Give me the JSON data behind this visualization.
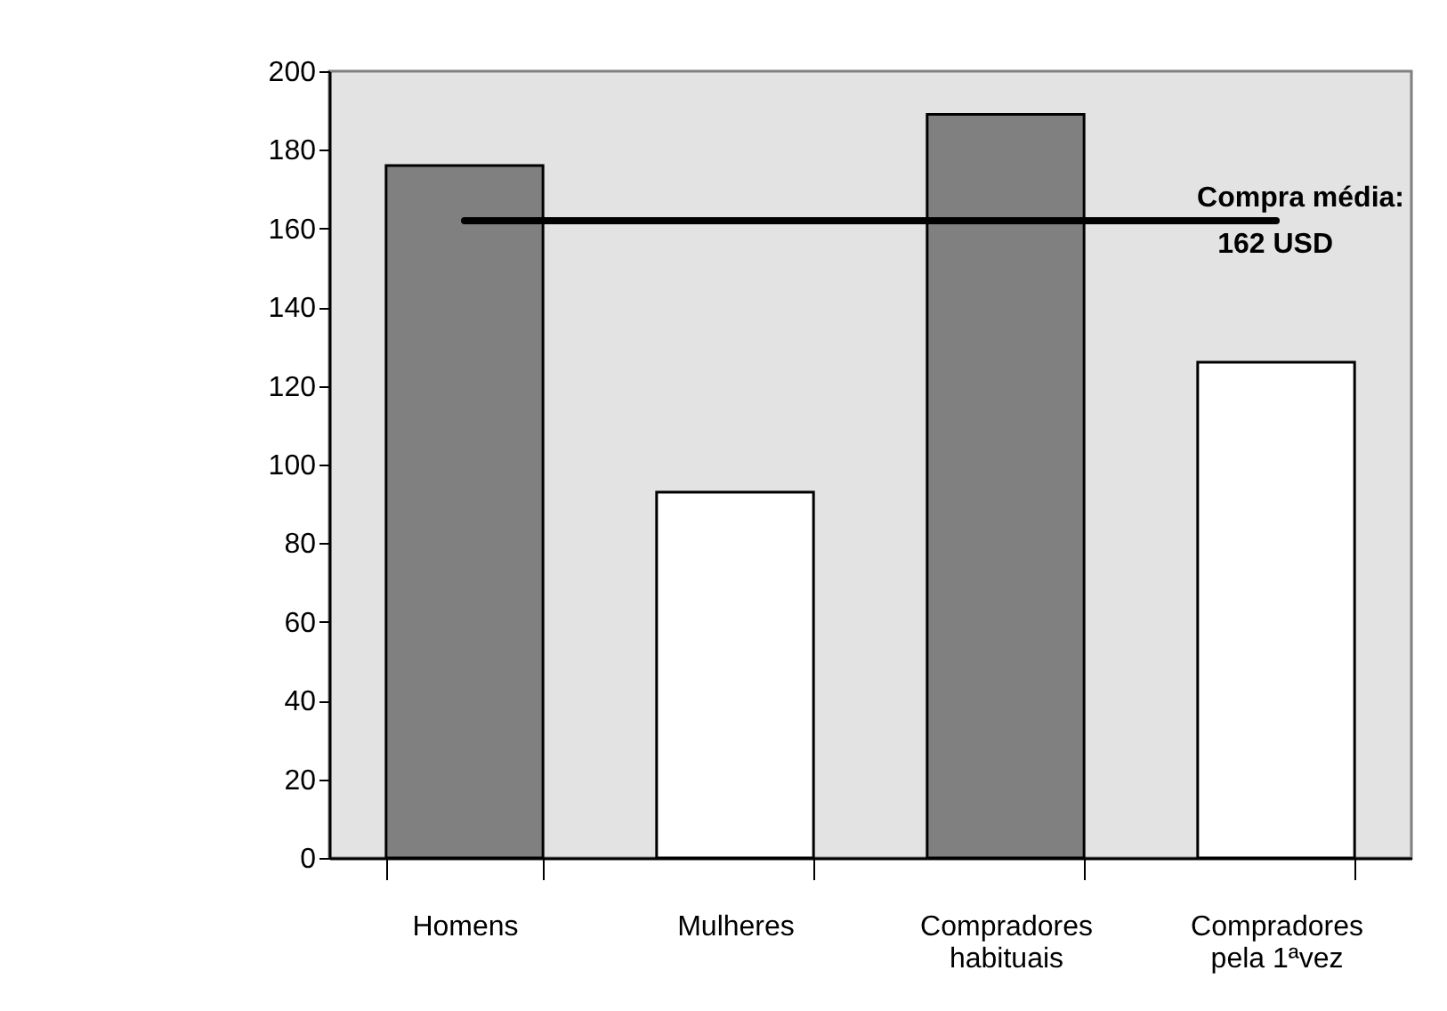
{
  "chart_data": {
    "type": "bar",
    "categories": [
      "Homens",
      "Mulheres",
      "Compradores habituais",
      "Compradores pela 1ªvez"
    ],
    "values": [
      176,
      93,
      189,
      126
    ],
    "colors": [
      "#808080",
      "#ffffff",
      "#808080",
      "#ffffff"
    ],
    "ylim": [
      0,
      200
    ],
    "yticks": [
      0,
      20,
      40,
      60,
      80,
      100,
      120,
      140,
      160,
      180,
      200
    ],
    "grid": false,
    "ref_lines": [
      {
        "axis": "y",
        "value": 162,
        "label": "Compra média: 162 USD",
        "color": "#000000"
      }
    ]
  }
}
